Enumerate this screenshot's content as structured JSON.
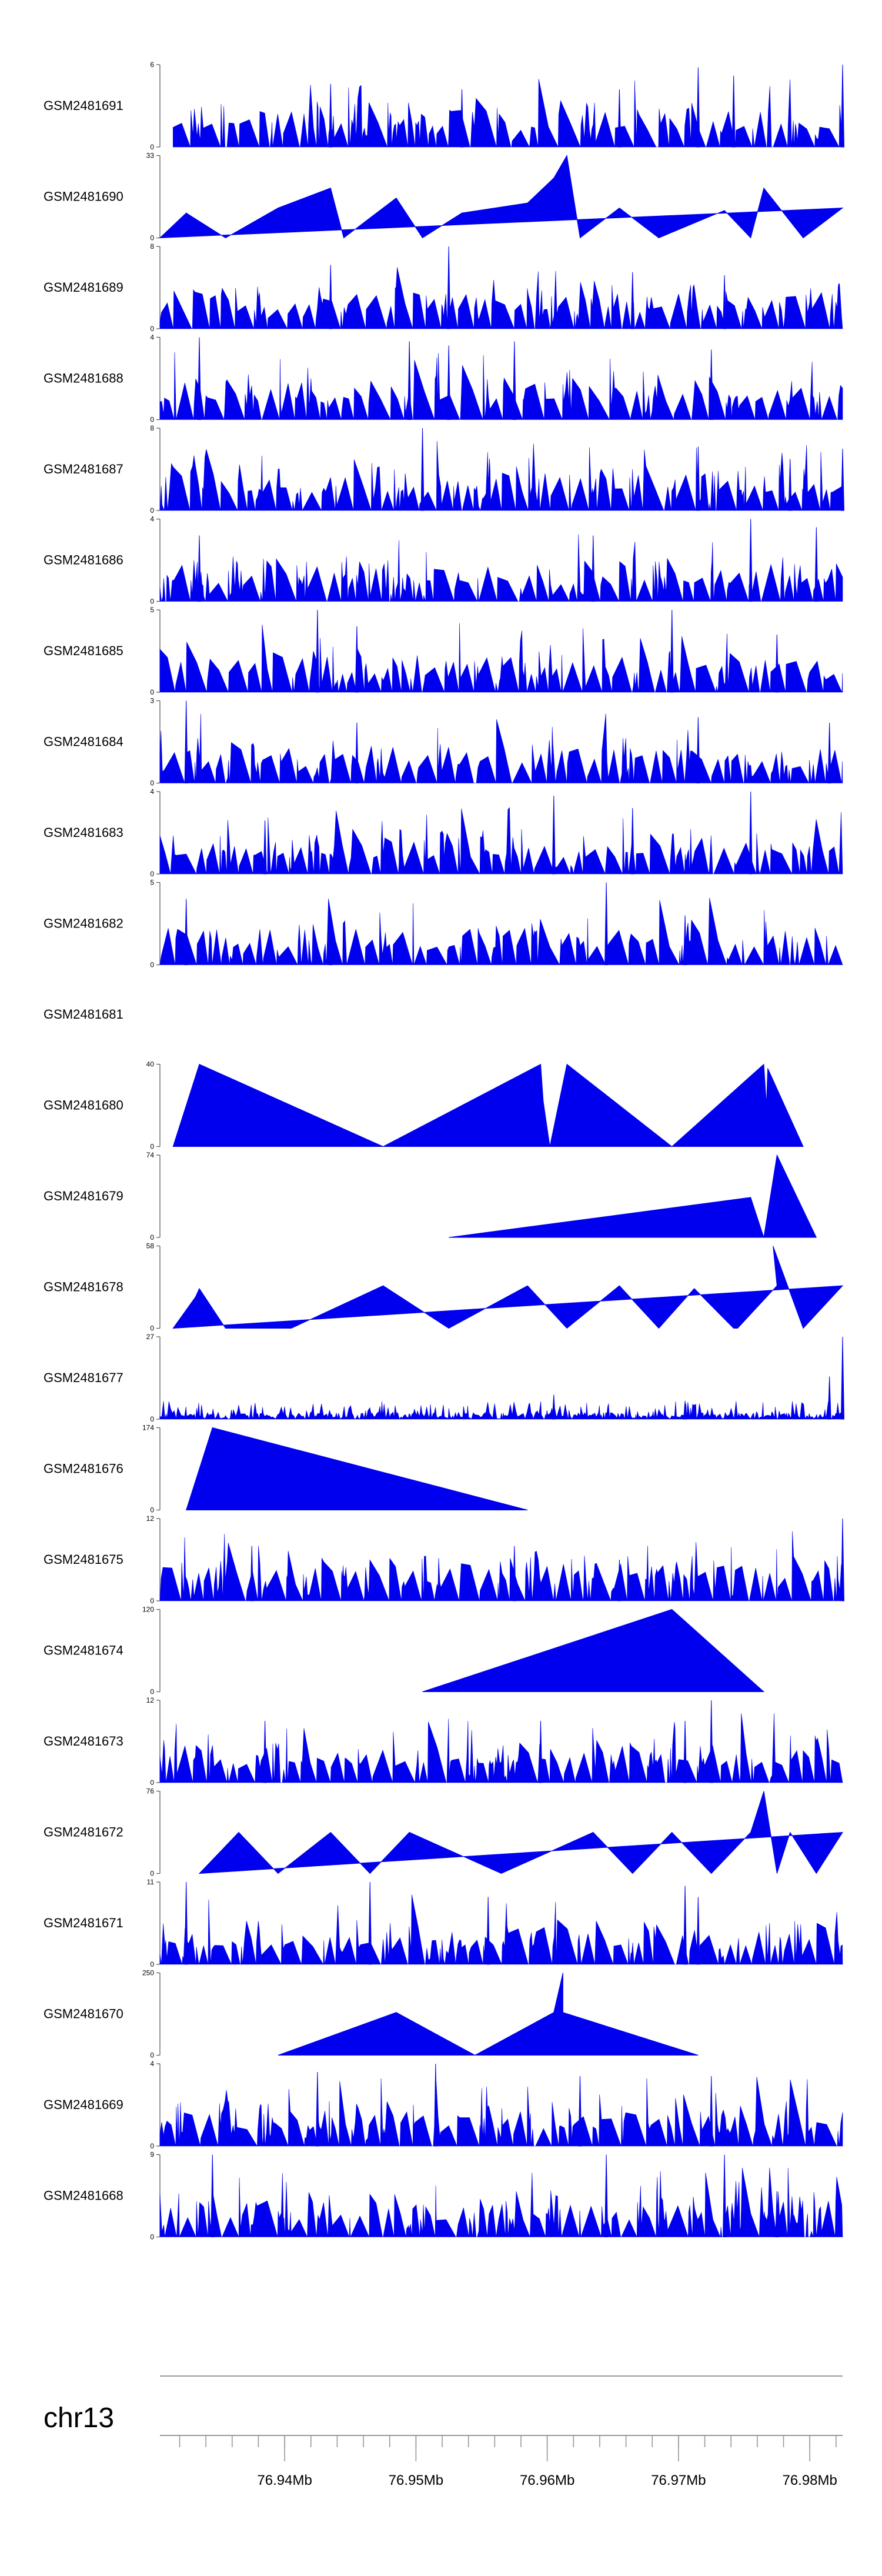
{
  "chart_data": {
    "type": "area",
    "chromosome": "chr13",
    "x_unit": "Mb",
    "xlim": [
      76.9305,
      76.9825
    ],
    "x_ticks": [
      76.94,
      76.95,
      76.96,
      76.97,
      76.98
    ],
    "x_tick_labels": [
      "76.94Mb",
      "76.95Mb",
      "76.96Mb",
      "76.97Mb",
      "76.98Mb"
    ],
    "fill_color": "#0000ee",
    "tracks": [
      {
        "name": "GSM2481691",
        "ymax": 6,
        "ymax_label": "6",
        "ymin_label": "0",
        "style": "dense",
        "xrange": [
          76.9315,
          76.9825
        ],
        "peaks": [
          [
            76.9435,
            4.6
          ],
          [
            76.9535,
            4.2
          ],
          [
            76.9655,
            4.2
          ],
          [
            76.9715,
            5.8
          ],
          [
            76.9742,
            5.2
          ],
          [
            76.9825,
            6
          ]
        ]
      },
      {
        "name": "GSM2481690",
        "ymax": 33,
        "ymax_label": "33",
        "ymin_label": "0",
        "style": "sparse",
        "points": [
          [
            76.9305,
            0
          ],
          [
            76.9325,
            10
          ],
          [
            76.9355,
            0
          ],
          [
            76.9395,
            12
          ],
          [
            76.9435,
            20
          ],
          [
            76.9445,
            0
          ],
          [
            76.9485,
            16
          ],
          [
            76.9505,
            0
          ],
          [
            76.9535,
            10
          ],
          [
            76.9585,
            14
          ],
          [
            76.9605,
            24
          ],
          [
            76.9615,
            33
          ],
          [
            76.9625,
            0
          ],
          [
            76.9655,
            12
          ],
          [
            76.9685,
            0
          ],
          [
            76.9735,
            11
          ],
          [
            76.9755,
            0
          ],
          [
            76.9765,
            20
          ],
          [
            76.9795,
            0
          ],
          [
            76.9825,
            12
          ]
        ]
      },
      {
        "name": "GSM2481689",
        "ymax": 8,
        "ymax_label": "8",
        "ymin_label": "0",
        "style": "dense",
        "xrange": [
          76.9305,
          76.9825
        ],
        "peaks": [
          [
            76.9525,
            8
          ],
          [
            76.9435,
            6.2
          ],
          [
            76.9665,
            5.5
          ],
          [
            76.9735,
            5.2
          ]
        ]
      },
      {
        "name": "GSM2481688",
        "ymax": 4,
        "ymax_label": "4",
        "ymin_label": "0",
        "style": "dense",
        "xrange": [
          76.9305,
          76.9825
        ],
        "peaks": [
          [
            76.9335,
            4
          ],
          [
            76.9495,
            3.8
          ],
          [
            76.9525,
            3.6
          ],
          [
            76.9575,
            3.8
          ],
          [
            76.9725,
            3.4
          ]
        ]
      },
      {
        "name": "GSM2481687",
        "ymax": 8,
        "ymax_label": "8",
        "ymin_label": "0",
        "style": "dense",
        "xrange": [
          76.9305,
          76.9825
        ],
        "peaks": [
          [
            76.9505,
            8
          ],
          [
            76.9715,
            6.2
          ],
          [
            76.9785,
            5
          ],
          [
            76.9825,
            6
          ]
        ]
      },
      {
        "name": "GSM2481686",
        "ymax": 4,
        "ymax_label": "4",
        "ymin_label": "0",
        "style": "dense",
        "xrange": [
          76.9305,
          76.9825
        ],
        "peaks": [
          [
            76.9755,
            4
          ],
          [
            76.9635,
            3.2
          ],
          [
            76.9805,
            3.6
          ],
          [
            76.9335,
            3.2
          ]
        ]
      },
      {
        "name": "GSM2481685",
        "ymax": 5,
        "ymax_label": "5",
        "ymin_label": "0",
        "style": "dense",
        "xrange": [
          76.9305,
          76.9825
        ],
        "peaks": [
          [
            76.9425,
            5
          ],
          [
            76.9695,
            5
          ],
          [
            76.9455,
            4
          ],
          [
            76.9775,
            3.5
          ]
        ]
      },
      {
        "name": "GSM2481684",
        "ymax": 3,
        "ymax_label": "3",
        "ymin_label": "0",
        "style": "dense",
        "xrange": [
          76.9305,
          76.9825
        ],
        "peaks": [
          [
            76.9325,
            3
          ],
          [
            76.9455,
            2.2
          ],
          [
            76.9715,
            2.4
          ],
          [
            76.9815,
            2.2
          ]
        ]
      },
      {
        "name": "GSM2481683",
        "ymax": 4,
        "ymax_label": "4",
        "ymin_label": "0",
        "style": "dense",
        "xrange": [
          76.9305,
          76.9825
        ],
        "peaks": [
          [
            76.9605,
            3.8
          ],
          [
            76.9755,
            4
          ],
          [
            76.9665,
            3.2
          ],
          [
            76.9385,
            2.6
          ]
        ]
      },
      {
        "name": "GSM2481682",
        "ymax": 5,
        "ymax_label": "5",
        "ymin_label": "0",
        "style": "dense",
        "xrange": [
          76.9305,
          76.9825
        ],
        "peaks": [
          [
            76.9645,
            5
          ],
          [
            76.9325,
            4
          ],
          [
            76.9435,
            3
          ],
          [
            76.9705,
            3
          ]
        ]
      },
      {
        "name": "GSM2481681",
        "style": "empty"
      },
      {
        "name": "GSM2481680",
        "ymax": 40,
        "ymax_label": "40",
        "ymin_label": "0",
        "style": "sparse",
        "points": [
          [
            76.9315,
            0
          ],
          [
            76.9335,
            40
          ],
          [
            76.9475,
            0
          ],
          [
            76.9595,
            40
          ],
          [
            76.9597,
            22
          ],
          [
            76.9602,
            0
          ],
          [
            76.9615,
            40
          ],
          [
            76.9695,
            0
          ],
          [
            76.9765,
            40
          ],
          [
            76.9767,
            20
          ],
          [
            76.9768,
            38
          ],
          [
            76.9795,
            0
          ]
        ]
      },
      {
        "name": "GSM2481679",
        "ymax": 74,
        "ymax_label": "74",
        "ymin_label": "0",
        "style": "sparse",
        "points": [
          [
            76.9525,
            0
          ],
          [
            76.9755,
            36
          ],
          [
            76.9765,
            0
          ],
          [
            76.9775,
            74
          ],
          [
            76.9805,
            0
          ]
        ]
      },
      {
        "name": "GSM2481678",
        "ymax": 58,
        "ymax_label": "58",
        "ymin_label": "0",
        "style": "sparse",
        "points": [
          [
            76.9315,
            0
          ],
          [
            76.9332,
            22
          ],
          [
            76.9335,
            28
          ],
          [
            76.9355,
            0
          ],
          [
            76.9405,
            0
          ],
          [
            76.9475,
            30
          ],
          [
            76.9525,
            0
          ],
          [
            76.9585,
            30
          ],
          [
            76.9615,
            0
          ],
          [
            76.9655,
            30
          ],
          [
            76.9685,
            0
          ],
          [
            76.9712,
            28
          ],
          [
            76.9742,
            0
          ],
          [
            76.9745,
            0
          ],
          [
            76.9775,
            30
          ],
          [
            76.9772,
            58
          ],
          [
            76.9795,
            0
          ],
          [
            76.9825,
            30
          ]
        ]
      },
      {
        "name": "GSM2481677",
        "ymax": 27,
        "ymax_label": "27",
        "ymin_label": "0",
        "style": "dense-low",
        "xrange": [
          76.9305,
          76.9825
        ],
        "peaks": [
          [
            76.9825,
            27
          ],
          [
            76.9815,
            14
          ],
          [
            76.9605,
            8
          ],
          [
            76.9705,
            6
          ]
        ]
      },
      {
        "name": "GSM2481676",
        "ymax": 174,
        "ymax_label": "174",
        "ymin_label": "0",
        "style": "sparse",
        "points": [
          [
            76.9325,
            0
          ],
          [
            76.9345,
            174
          ],
          [
            76.9585,
            0
          ]
        ]
      },
      {
        "name": "GSM2481675",
        "ymax": 12,
        "ymax_label": "12",
        "ymin_label": "0",
        "style": "dense",
        "xrange": [
          76.9305,
          76.9825
        ],
        "peaks": [
          [
            76.9825,
            12
          ],
          [
            76.9375,
            8
          ],
          [
            76.9575,
            8
          ],
          [
            76.9655,
            6
          ]
        ]
      },
      {
        "name": "GSM2481674",
        "ymax": 120,
        "ymax_label": "120",
        "ymin_label": "0",
        "style": "sparse",
        "points": [
          [
            76.9505,
            0
          ],
          [
            76.9695,
            120
          ],
          [
            76.9765,
            0
          ]
        ]
      },
      {
        "name": "GSM2481673",
        "ymax": 12,
        "ymax_label": "12",
        "ymin_label": "0",
        "style": "dense",
        "xrange": [
          76.9305,
          76.9825
        ],
        "peaks": [
          [
            76.9725,
            12
          ],
          [
            76.9385,
            9
          ],
          [
            76.9595,
            9
          ],
          [
            76.9705,
            9
          ]
        ]
      },
      {
        "name": "GSM2481672",
        "ymax": 76,
        "ymax_label": "76",
        "ymin_label": "0",
        "style": "sparse",
        "points": [
          [
            76.9335,
            0
          ],
          [
            76.9365,
            38
          ],
          [
            76.9395,
            0
          ],
          [
            76.9435,
            38
          ],
          [
            76.9465,
            0
          ],
          [
            76.9495,
            38
          ],
          [
            76.9565,
            0
          ],
          [
            76.9635,
            38
          ],
          [
            76.9665,
            0
          ],
          [
            76.9695,
            38
          ],
          [
            76.9725,
            0
          ],
          [
            76.9755,
            38
          ],
          [
            76.9765,
            76
          ],
          [
            76.9775,
            0
          ],
          [
            76.9785,
            38
          ],
          [
            76.9805,
            0
          ],
          [
            76.9825,
            38
          ]
        ]
      },
      {
        "name": "GSM2481671",
        "ymax": 11,
        "ymax_label": "11",
        "ymin_label": "0",
        "style": "dense",
        "xrange": [
          76.9305,
          76.9825
        ],
        "peaks": [
          [
            76.9325,
            11
          ],
          [
            76.9465,
            11
          ],
          [
            76.9705,
            10.5
          ],
          [
            76.9715,
            9
          ],
          [
            76.9555,
            9
          ]
        ]
      },
      {
        "name": "GSM2481670",
        "ymax": 250,
        "ymax_label": "250",
        "ymin_label": "0",
        "style": "sparse",
        "points": [
          [
            76.9395,
            0
          ],
          [
            76.9485,
            130
          ],
          [
            76.9545,
            0
          ],
          [
            76.9605,
            130
          ],
          [
            76.9612,
            250
          ],
          [
            76.9612,
            130
          ],
          [
            76.9715,
            0
          ]
        ]
      },
      {
        "name": "GSM2481669",
        "ymax": 4,
        "ymax_label": "4",
        "ymin_label": "0",
        "style": "dense",
        "xrange": [
          76.9305,
          76.9825
        ],
        "peaks": [
          [
            76.9515,
            4
          ],
          [
            76.9425,
            3.6
          ],
          [
            76.9625,
            3.4
          ],
          [
            76.9725,
            3.4
          ]
        ]
      },
      {
        "name": "GSM2481668",
        "ymax": 9,
        "ymax_label": "9",
        "ymin_label": "0",
        "style": "dense",
        "xrange": [
          76.9305,
          76.9825
        ],
        "peaks": [
          [
            76.9345,
            9
          ],
          [
            76.9645,
            9
          ],
          [
            76.9735,
            9
          ],
          [
            76.9775,
            5
          ]
        ]
      }
    ]
  }
}
